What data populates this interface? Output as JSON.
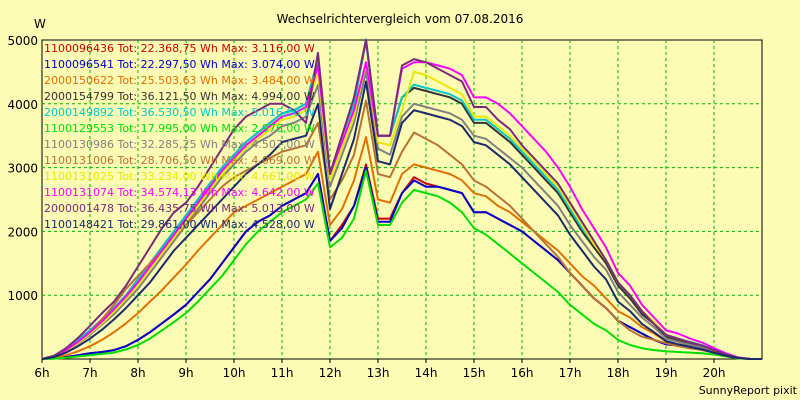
{
  "chart_data": {
    "type": "line",
    "title": "Wechselrichtervergleich vom 07.08.2016",
    "ylabel": "W",
    "xlabel": "",
    "footer": "SunnyReport pixit",
    "x_ticks": [
      "6h",
      "7h",
      "8h",
      "9h",
      "10h",
      "11h",
      "12h",
      "13h",
      "14h",
      "15h",
      "16h",
      "17h",
      "18h",
      "19h",
      "20h"
    ],
    "y_ticks": [
      "1000",
      "2000",
      "3000",
      "4000",
      "5000"
    ],
    "xlim": [
      6,
      21
    ],
    "ylim": [
      0,
      5000
    ],
    "grid": true,
    "legend_position": "top-left",
    "x": [
      6.0,
      6.25,
      6.5,
      6.75,
      7.0,
      7.25,
      7.5,
      7.75,
      8.0,
      8.25,
      8.5,
      8.75,
      9.0,
      9.25,
      9.5,
      9.75,
      10.0,
      10.25,
      10.5,
      10.75,
      11.0,
      11.25,
      11.5,
      11.75,
      12.0,
      12.25,
      12.5,
      12.75,
      13.0,
      13.25,
      13.5,
      13.75,
      14.0,
      14.25,
      14.5,
      14.75,
      15.0,
      15.25,
      15.5,
      15.75,
      16.0,
      16.25,
      16.5,
      16.75,
      17.0,
      17.25,
      17.5,
      17.75,
      18.0,
      18.25,
      18.5,
      18.75,
      19.0,
      19.25,
      19.5,
      19.75,
      20.0,
      20.25,
      20.5,
      20.75,
      21.0
    ],
    "series": [
      {
        "name": "1100096436 Tot: 22.368,75 Wh Max: 3.116,00 W",
        "color": "#cc0000",
        "values": [
          0,
          10,
          30,
          60,
          90,
          110,
          140,
          200,
          300,
          420,
          560,
          700,
          850,
          1050,
          1250,
          1500,
          1750,
          2000,
          2150,
          2250,
          2400,
          2500,
          2600,
          2900,
          1850,
          2100,
          2400,
          3050,
          2200,
          2200,
          2600,
          2850,
          2750,
          2700,
          2650,
          2600,
          2300,
          2300,
          2200,
          2100,
          2000,
          1850,
          1700,
          1550,
          1350,
          1150,
          950,
          800,
          600,
          500,
          400,
          300,
          230,
          210,
          170,
          150,
          100,
          50,
          15,
          0,
          0
        ]
      },
      {
        "name": "1100096541 Tot: 22.297,50 Wh Max: 3.074,00 W",
        "color": "#0000cc",
        "values": [
          0,
          10,
          30,
          60,
          90,
          110,
          140,
          200,
          300,
          420,
          560,
          700,
          850,
          1050,
          1250,
          1500,
          1750,
          2000,
          2150,
          2250,
          2400,
          2500,
          2600,
          2900,
          1850,
          2050,
          2400,
          3000,
          2150,
          2150,
          2600,
          2800,
          2700,
          2700,
          2650,
          2600,
          2300,
          2300,
          2200,
          2100,
          2000,
          1850,
          1700,
          1550,
          1350,
          1150,
          950,
          800,
          600,
          500,
          400,
          300,
          230,
          210,
          170,
          150,
          100,
          50,
          15,
          0,
          0
        ]
      },
      {
        "name": "2000150622 Tot: 25.503,63 Wh Max: 3.484,00 W",
        "color": "#e07000",
        "values": [
          0,
          20,
          60,
          120,
          200,
          300,
          420,
          560,
          720,
          900,
          1080,
          1280,
          1480,
          1700,
          1900,
          2100,
          2300,
          2400,
          2500,
          2600,
          2700,
          2800,
          2900,
          3250,
          2100,
          2350,
          2800,
          3480,
          2500,
          2450,
          2900,
          3050,
          3000,
          2950,
          2900,
          2800,
          2600,
          2550,
          2400,
          2300,
          2150,
          2000,
          1850,
          1700,
          1500,
          1300,
          1150,
          950,
          750,
          650,
          500,
          400,
          280,
          230,
          200,
          170,
          120,
          60,
          20,
          0,
          0
        ]
      },
      {
        "name": "2000154799 Tot: 36.121,50 Wh Max: 4.994,00 W",
        "color": "#333333",
        "values": [
          0,
          50,
          160,
          300,
          450,
          620,
          800,
          1000,
          1250,
          1500,
          1750,
          2000,
          2250,
          2500,
          2750,
          3000,
          3200,
          3400,
          3550,
          3700,
          3850,
          3900,
          4000,
          4700,
          2900,
          3500,
          4000,
          4990,
          3500,
          3500,
          4100,
          4250,
          4200,
          4150,
          4100,
          4000,
          3700,
          3700,
          3550,
          3400,
          3200,
          3000,
          2800,
          2600,
          2300,
          2000,
          1750,
          1500,
          1150,
          950,
          700,
          550,
          350,
          300,
          250,
          200,
          130,
          70,
          20,
          0,
          0
        ]
      },
      {
        "name": "2000149892 Tot: 36.530,50 Wh Max: 5.016,00 W",
        "color": "#00c8c8",
        "values": [
          0,
          50,
          160,
          300,
          450,
          620,
          800,
          1000,
          1250,
          1500,
          1750,
          2000,
          2250,
          2500,
          2750,
          3000,
          3200,
          3400,
          3550,
          3700,
          3850,
          3900,
          4000,
          4700,
          2900,
          3500,
          4000,
          5010,
          3500,
          3500,
          4100,
          4300,
          4250,
          4200,
          4150,
          4050,
          3750,
          3750,
          3600,
          3450,
          3250,
          3050,
          2850,
          2650,
          2350,
          2050,
          1800,
          1550,
          1200,
          1000,
          750,
          580,
          380,
          320,
          270,
          220,
          150,
          80,
          25,
          0,
          0
        ]
      },
      {
        "name": "1100129553 Tot: 17.995,00 Wh Max: 2.976,00 W",
        "color": "#00dd00",
        "values": [
          0,
          5,
          20,
          40,
          60,
          80,
          100,
          150,
          220,
          320,
          450,
          580,
          720,
          900,
          1100,
          1300,
          1550,
          1800,
          2000,
          2150,
          2300,
          2400,
          2500,
          2750,
          1750,
          1900,
          2200,
          2950,
          2100,
          2100,
          2450,
          2650,
          2600,
          2550,
          2450,
          2300,
          2050,
          1950,
          1800,
          1650,
          1500,
          1350,
          1200,
          1050,
          850,
          700,
          550,
          450,
          300,
          220,
          170,
          140,
          120,
          110,
          100,
          90,
          70,
          40,
          10,
          0,
          0
        ]
      },
      {
        "name": "1100130986 Tot: 32.285,25 Wh Max: 4.507,00 W",
        "color": "#808080",
        "values": [
          0,
          40,
          120,
          240,
          380,
          540,
          700,
          900,
          1100,
          1350,
          1600,
          1850,
          2100,
          2350,
          2600,
          2850,
          3050,
          3250,
          3400,
          3500,
          3650,
          3700,
          3800,
          4300,
          2700,
          3200,
          3700,
          4500,
          3300,
          3200,
          3800,
          4000,
          3950,
          3900,
          3850,
          3750,
          3500,
          3450,
          3300,
          3150,
          3000,
          2800,
          2600,
          2400,
          2100,
          1850,
          1600,
          1400,
          1050,
          850,
          650,
          500,
          320,
          270,
          220,
          180,
          120,
          60,
          20,
          0,
          0
        ]
      },
      {
        "name": "1100131006 Tot: 28.706,50 Wh Max: 4.069,00 W",
        "color": "#b87333",
        "values": [
          0,
          30,
          120,
          260,
          420,
          620,
          850,
          1100,
          1300,
          1500,
          1700,
          1900,
          2100,
          2300,
          2500,
          2700,
          2850,
          2950,
          3050,
          3150,
          3250,
          3300,
          3350,
          3700,
          2500,
          2800,
          3200,
          4050,
          2900,
          2850,
          3250,
          3550,
          3450,
          3350,
          3200,
          3050,
          2800,
          2700,
          2550,
          2400,
          2200,
          2000,
          1800,
          1600,
          1350,
          1150,
          950,
          800,
          600,
          450,
          350,
          300,
          250,
          200,
          170,
          140,
          100,
          50,
          15,
          0,
          0
        ]
      },
      {
        "name": "1100131025 Tot: 33.234,00 Wh Max: 4.661,00 W",
        "color": "#e8e800",
        "values": [
          0,
          40,
          130,
          250,
          400,
          560,
          740,
          940,
          1150,
          1400,
          1650,
          1900,
          2150,
          2400,
          2650,
          2900,
          3100,
          3300,
          3450,
          3600,
          3750,
          3800,
          3900,
          4500,
          2800,
          3300,
          3800,
          4650,
          3400,
          3350,
          3900,
          4500,
          4450,
          4350,
          4250,
          4150,
          3800,
          3800,
          3650,
          3500,
          3300,
          3100,
          2900,
          2700,
          2400,
          2100,
          1800,
          1550,
          1200,
          1000,
          750,
          580,
          380,
          320,
          260,
          210,
          140,
          70,
          20,
          0,
          0
        ]
      },
      {
        "name": "1100131074 Tot: 34.574,13 Wh Max: 4.642,00 W",
        "color": "#ff00ff",
        "values": [
          0,
          45,
          140,
          270,
          420,
          590,
          780,
          980,
          1200,
          1450,
          1700,
          1950,
          2200,
          2450,
          2700,
          2950,
          3150,
          3350,
          3500,
          3650,
          3800,
          3850,
          3950,
          4600,
          2900,
          3400,
          3900,
          4650,
          3500,
          3500,
          4550,
          4650,
          4650,
          4600,
          4550,
          4450,
          4100,
          4100,
          4000,
          3850,
          3650,
          3450,
          3250,
          3000,
          2700,
          2350,
          2050,
          1750,
          1350,
          1150,
          850,
          650,
          450,
          400,
          320,
          260,
          170,
          90,
          25,
          0,
          0
        ]
      },
      {
        "name": "2000001478 Tot: 36.435,75 Wh Max: 5.013,00 W",
        "color": "#7a2a7a",
        "values": [
          0,
          50,
          170,
          330,
          520,
          720,
          900,
          1150,
          1450,
          1750,
          2050,
          2300,
          2450,
          2700,
          3000,
          3300,
          3600,
          3800,
          3900,
          4000,
          4000,
          3900,
          3700,
          4800,
          2900,
          3500,
          4100,
          5000,
          3500,
          3500,
          4600,
          4700,
          4650,
          4550,
          4450,
          4350,
          3950,
          3950,
          3750,
          3600,
          3350,
          3150,
          2950,
          2750,
          2450,
          2150,
          1850,
          1550,
          1200,
          1000,
          750,
          550,
          380,
          320,
          260,
          210,
          140,
          70,
          20,
          0,
          0
        ]
      },
      {
        "name": "1100148421 Tot: 29.861,00 Wh Max: 4.528,00 W",
        "color": "#1a2a6c",
        "values": [
          0,
          30,
          100,
          200,
          320,
          460,
          620,
          800,
          1000,
          1200,
          1450,
          1700,
          1900,
          2100,
          2300,
          2500,
          2700,
          2900,
          3050,
          3200,
          3400,
          3450,
          3500,
          4000,
          2350,
          2900,
          3450,
          4350,
          3100,
          3050,
          3700,
          3900,
          3850,
          3800,
          3750,
          3650,
          3400,
          3350,
          3200,
          3050,
          2850,
          2650,
          2450,
          2250,
          1950,
          1700,
          1450,
          1250,
          900,
          750,
          550,
          420,
          280,
          230,
          190,
          150,
          100,
          50,
          15,
          0,
          0
        ]
      }
    ]
  }
}
